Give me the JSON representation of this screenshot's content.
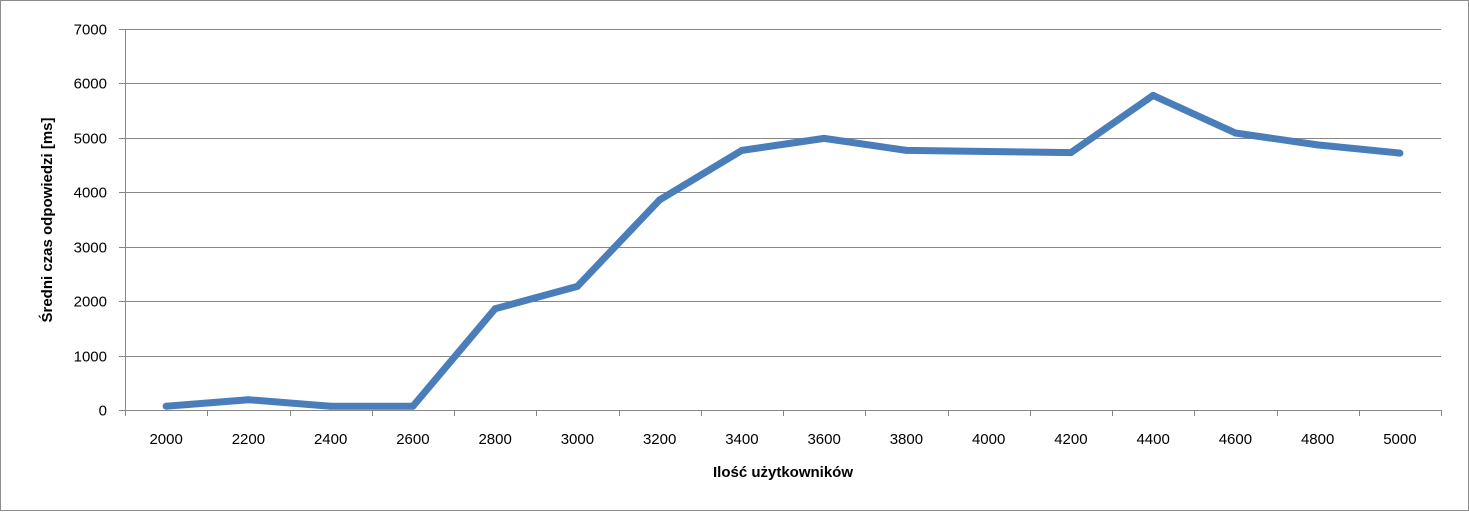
{
  "chart_data": {
    "type": "line",
    "title": "",
    "xlabel": "Ilość użytkowników",
    "ylabel": "Średni czas odpowiedzi [ms]",
    "categories": [
      "2000",
      "2200",
      "2400",
      "2600",
      "2800",
      "3000",
      "3200",
      "3400",
      "3600",
      "3800",
      "4000",
      "4200",
      "4400",
      "4600",
      "4800",
      "5000"
    ],
    "series": [
      {
        "values": [
          70,
          190,
          70,
          70,
          1860,
          2270,
          3860,
          4770,
          4990,
          4770,
          4750,
          4730,
          5780,
          5090,
          4870,
          4720
        ]
      }
    ],
    "ylim": [
      0,
      7000
    ],
    "yticks": [
      0,
      1000,
      2000,
      3000,
      4000,
      5000,
      6000,
      7000
    ],
    "grid": "horizontal",
    "legend": "none",
    "colors": {
      "line": "#4a7ebb",
      "grid": "#868686",
      "axis": "#868686"
    }
  }
}
